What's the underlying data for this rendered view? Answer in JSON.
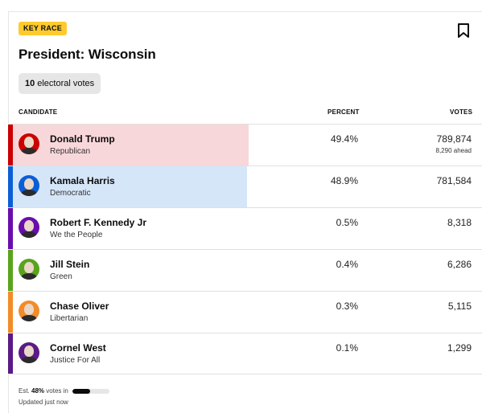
{
  "race": {
    "badge": "KEY RACE",
    "title": "President: Wisconsin",
    "electoral_votes": "10",
    "electoral_label": "electoral votes"
  },
  "columns": {
    "candidate": "CANDIDATE",
    "percent": "PERCENT",
    "votes": "VOTES"
  },
  "candidates": [
    {
      "name": "Donald Trump",
      "party": "Republican",
      "percent": "49.4%",
      "votes": "789,874",
      "note": "8,290 ahead",
      "color": "#cc0000",
      "fill": "#f8d7da",
      "fill_share": 0.494
    },
    {
      "name": "Kamala Harris",
      "party": "Democratic",
      "percent": "48.9%",
      "votes": "781,584",
      "note": "",
      "color": "#0c5ed7",
      "fill": "#d6e6f9",
      "fill_share": 0.489
    },
    {
      "name": "Robert F. Kennedy Jr",
      "party": "We the People",
      "percent": "0.5%",
      "votes": "8,318",
      "note": "",
      "color": "#6a0dad",
      "fill": "",
      "fill_share": 0
    },
    {
      "name": "Jill Stein",
      "party": "Green",
      "percent": "0.4%",
      "votes": "6,286",
      "note": "",
      "color": "#5aa31c",
      "fill": "",
      "fill_share": 0
    },
    {
      "name": "Chase Oliver",
      "party": "Libertarian",
      "percent": "0.3%",
      "votes": "5,115",
      "note": "",
      "color": "#f28c28",
      "fill": "",
      "fill_share": 0
    },
    {
      "name": "Cornel West",
      "party": "Justice For All",
      "percent": "0.1%",
      "votes": "1,299",
      "note": "",
      "color": "#5b1a86",
      "fill": "",
      "fill_share": 0
    }
  ],
  "footer": {
    "est_prefix": "Est.",
    "est_value": "48%",
    "est_suffix": "votes in",
    "est_share": 0.48,
    "updated": "Updated just now"
  },
  "icons": {
    "bookmark": "bookmark-icon"
  }
}
